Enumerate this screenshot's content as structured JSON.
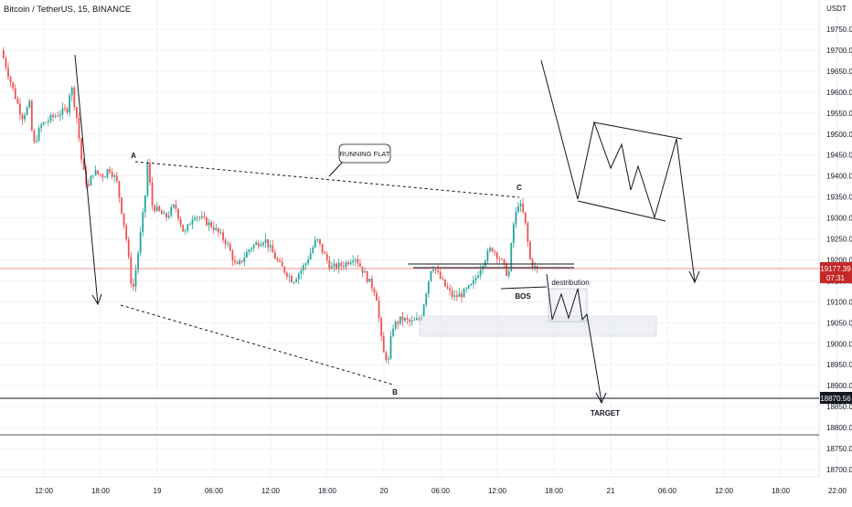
{
  "header": {
    "symbol_title": "Bitcoin / TetherUS, 15, BINANCE"
  },
  "price_axis": {
    "currency": "USDT",
    "last_price": "19177.39",
    "countdown": "07:31",
    "level_price": "18870.56"
  },
  "annotations": {
    "running_flat": "RUNNING FLAT",
    "point_a": "A",
    "point_b": "B",
    "point_c": "C",
    "bos": "BOS",
    "distribution": "destribution",
    "target": "TARGET"
  },
  "colors": {
    "up_candle": "#26a69a",
    "down_candle": "#ef5350",
    "last_price_line": "#e57373",
    "last_price_label_bg": "#c62828",
    "level_label_bg": "#131722",
    "drawing": "#131722",
    "zone_fill": "#e0e3eb",
    "axis_text": "#131722",
    "grid": "#f0f3fa"
  },
  "chart_data": {
    "type": "candlestick",
    "title": "Bitcoin / TetherUS, 15, BINANCE",
    "xlabel": "",
    "ylabel": "USDT",
    "ylim": [
      18680,
      19860
    ],
    "y_ticks": [
      18700,
      18750,
      18800,
      18850,
      18900,
      18950,
      19000,
      19050,
      19100,
      19150,
      19200,
      19250,
      19300,
      19350,
      19400,
      19450,
      19500,
      19550,
      19600,
      19650,
      19700,
      19750
    ],
    "x_ticks": [
      "12:00",
      "18:00",
      "19",
      "06:00",
      "12:00",
      "18:00",
      "20",
      "06:00",
      "12:00",
      "18:00",
      "21",
      "06:00",
      "12:00",
      "18:00",
      "22:00"
    ],
    "x_tick_hours": [
      12,
      18,
      24,
      30,
      36,
      42,
      48,
      54,
      60,
      66,
      72,
      78,
      84,
      90,
      96
    ],
    "x_range_hours": [
      7.5,
      96.5
    ],
    "last_price": 19177.39,
    "horizontal_level": 18870.56,
    "grid": true,
    "price_path_anchors": [
      {
        "t": 7.6,
        "p": 19700
      },
      {
        "t": 8.8,
        "p": 19610
      },
      {
        "t": 9.8,
        "p": 19540
      },
      {
        "t": 10.6,
        "p": 19570
      },
      {
        "t": 11.0,
        "p": 19470
      },
      {
        "t": 11.8,
        "p": 19520
      },
      {
        "t": 13.0,
        "p": 19540
      },
      {
        "t": 14.6,
        "p": 19560
      },
      {
        "t": 15.0,
        "p": 19620
      },
      {
        "t": 15.6,
        "p": 19540
      },
      {
        "t": 16.2,
        "p": 19420
      },
      {
        "t": 16.8,
        "p": 19370
      },
      {
        "t": 17.3,
        "p": 19410
      },
      {
        "t": 18.5,
        "p": 19400
      },
      {
        "t": 19.0,
        "p": 19420
      },
      {
        "t": 19.8,
        "p": 19390
      },
      {
        "t": 20.8,
        "p": 19260
      },
      {
        "t": 21.5,
        "p": 19120
      },
      {
        "t": 22.0,
        "p": 19200
      },
      {
        "t": 22.8,
        "p": 19340
      },
      {
        "t": 23.1,
        "p": 19430
      },
      {
        "t": 23.6,
        "p": 19330
      },
      {
        "t": 25.0,
        "p": 19300
      },
      {
        "t": 26.0,
        "p": 19330
      },
      {
        "t": 27.0,
        "p": 19260
      },
      {
        "t": 28.0,
        "p": 19310
      },
      {
        "t": 30.0,
        "p": 19280
      },
      {
        "t": 31.5,
        "p": 19240
      },
      {
        "t": 32.5,
        "p": 19180
      },
      {
        "t": 34.0,
        "p": 19230
      },
      {
        "t": 35.5,
        "p": 19250
      },
      {
        "t": 37.0,
        "p": 19190
      },
      {
        "t": 38.5,
        "p": 19150
      },
      {
        "t": 39.8,
        "p": 19190
      },
      {
        "t": 41.0,
        "p": 19250
      },
      {
        "t": 42.5,
        "p": 19180
      },
      {
        "t": 44.0,
        "p": 19190
      },
      {
        "t": 45.0,
        "p": 19210
      },
      {
        "t": 46.5,
        "p": 19150
      },
      {
        "t": 47.3,
        "p": 19120
      },
      {
        "t": 48.0,
        "p": 18980
      },
      {
        "t": 48.6,
        "p": 18960
      },
      {
        "t": 49.0,
        "p": 19040
      },
      {
        "t": 50.0,
        "p": 19060
      },
      {
        "t": 51.0,
        "p": 19050
      },
      {
        "t": 52.0,
        "p": 19060
      },
      {
        "t": 53.2,
        "p": 19190
      },
      {
        "t": 54.5,
        "p": 19140
      },
      {
        "t": 55.5,
        "p": 19110
      },
      {
        "t": 56.5,
        "p": 19120
      },
      {
        "t": 57.5,
        "p": 19140
      },
      {
        "t": 58.5,
        "p": 19190
      },
      {
        "t": 59.5,
        "p": 19230
      },
      {
        "t": 60.5,
        "p": 19200
      },
      {
        "t": 61.3,
        "p": 19160
      },
      {
        "t": 61.8,
        "p": 19280
      },
      {
        "t": 62.4,
        "p": 19340
      },
      {
        "t": 63.0,
        "p": 19300
      },
      {
        "t": 63.6,
        "p": 19200
      },
      {
        "t": 64.2,
        "p": 19177
      }
    ]
  }
}
